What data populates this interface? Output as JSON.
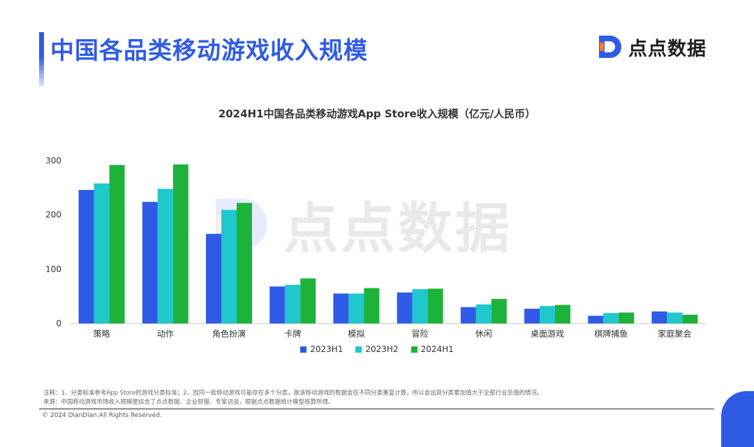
{
  "header": {
    "title": "中国各品类移动游戏收入规模",
    "brand_name": "点点数据",
    "brand_color": "#2f5be7"
  },
  "watermark": {
    "text": "点点数据"
  },
  "chart_data": {
    "type": "bar",
    "title": "2024H1中国各品类移动游戏App Store收入规模（亿元/人民币）",
    "categories": [
      "策略",
      "动作",
      "角色扮演",
      "卡牌",
      "模拟",
      "冒险",
      "休闲",
      "桌面游戏",
      "棋牌捕鱼",
      "家庭聚会"
    ],
    "series": [
      {
        "name": "2023H1",
        "color": "#2f5be7",
        "values": [
          246,
          224,
          165,
          68,
          55,
          57,
          30,
          27,
          14,
          22
        ]
      },
      {
        "name": "2023H2",
        "color": "#1ec8cc",
        "values": [
          258,
          248,
          209,
          71,
          55,
          63,
          35,
          32,
          19,
          20
        ]
      },
      {
        "name": "2024H1",
        "color": "#1db23a",
        "values": [
          292,
          293,
          222,
          83,
          65,
          64,
          45,
          34,
          20,
          16
        ]
      }
    ],
    "ylim": [
      0,
      300
    ],
    "yticks": [
      0,
      100,
      200,
      300
    ],
    "legend_position": "bottom",
    "grid": false
  },
  "notes": {
    "line1": "注释：1、分类标准参考App Store的游戏分类标准；2、因同一款移动游戏可能存在多个分类，故该移动游戏的数据会在不同分类重复计算，所以会出现分类累加值大于全部行业总值的情况。",
    "line2": "来源：中国移动游戏市场收入规模是综合了点点数据、企业财报、专家访谈，根据点点数据统计模型核算所得。"
  },
  "footer": {
    "copyright": "© 2024 DianDian.All Rights Reserved."
  }
}
